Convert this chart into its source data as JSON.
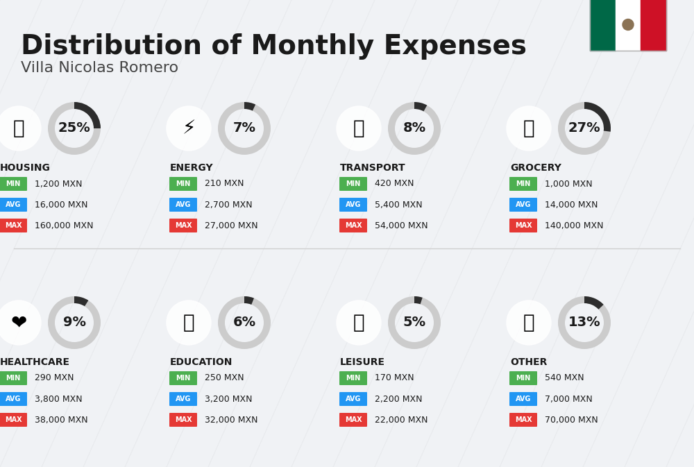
{
  "title": "Distribution of Monthly Expenses",
  "subtitle": "Villa Nicolas Romero",
  "background_color": "#f0f2f5",
  "title_fontsize": 28,
  "subtitle_fontsize": 16,
  "categories": [
    {
      "name": "HOUSING",
      "pct": 25,
      "min": "1,200 MXN",
      "avg": "16,000 MXN",
      "max": "160,000 MXN",
      "row": 0,
      "col": 0,
      "icon_char": "🏗",
      "icon_color": "#3a6fc4"
    },
    {
      "name": "ENERGY",
      "pct": 7,
      "min": "210 MXN",
      "avg": "2,700 MXN",
      "max": "27,000 MXN",
      "row": 0,
      "col": 1,
      "icon_char": "⚡",
      "icon_color": "#f5c518"
    },
    {
      "name": "TRANSPORT",
      "pct": 8,
      "min": "420 MXN",
      "avg": "5,400 MXN",
      "max": "54,000 MXN",
      "row": 0,
      "col": 2,
      "icon_char": "🚌",
      "icon_color": "#2cb5b2"
    },
    {
      "name": "GROCERY",
      "pct": 27,
      "min": "1,000 MXN",
      "avg": "14,000 MXN",
      "max": "140,000 MXN",
      "row": 0,
      "col": 3,
      "icon_char": "🛒",
      "icon_color": "#f5a623"
    },
    {
      "name": "HEALTHCARE",
      "pct": 9,
      "min": "290 MXN",
      "avg": "3,800 MXN",
      "max": "38,000 MXN",
      "row": 1,
      "col": 0,
      "icon_char": "❤",
      "icon_color": "#e05c6e"
    },
    {
      "name": "EDUCATION",
      "pct": 6,
      "min": "250 MXN",
      "avg": "3,200 MXN",
      "max": "32,000 MXN",
      "row": 1,
      "col": 1,
      "icon_char": "🎓",
      "icon_color": "#4caf50"
    },
    {
      "name": "LEISURE",
      "pct": 5,
      "min": "170 MXN",
      "avg": "2,200 MXN",
      "max": "22,000 MXN",
      "row": 1,
      "col": 2,
      "icon_char": "🛍",
      "icon_color": "#e05c3a"
    },
    {
      "name": "OTHER",
      "pct": 13,
      "min": "540 MXN",
      "avg": "7,000 MXN",
      "max": "70,000 MXN",
      "row": 1,
      "col": 3,
      "icon_char": "👜",
      "icon_color": "#c49a5a"
    }
  ],
  "min_color": "#4caf50",
  "avg_color": "#2196f3",
  "max_color": "#e53935",
  "label_fontsize": 9,
  "value_fontsize": 9,
  "cat_fontsize": 10,
  "pct_fontsize": 14,
  "ring_fill_color": "#333333",
  "ring_bg_color": "#cccccc"
}
